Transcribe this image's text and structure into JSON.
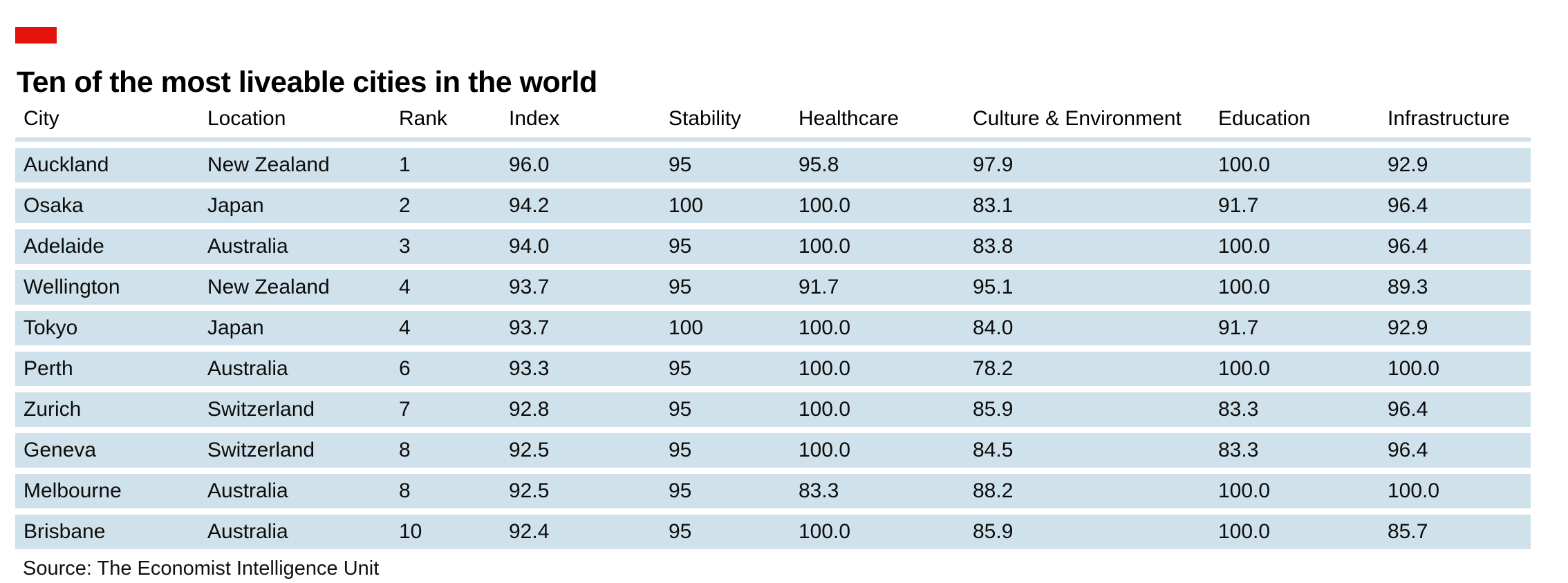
{
  "brand": {
    "accent_color": "#e3120b",
    "row_background": "#cfe1ea"
  },
  "chart_data": {
    "type": "table",
    "title": "Ten of the most liveable cities in the world",
    "columns": [
      "City",
      "Location",
      "Rank",
      "Index",
      "Stability",
      "Healthcare",
      "Culture & Environment",
      "Education",
      "Infrastructure"
    ],
    "rows": [
      [
        "Auckland",
        "New Zealand",
        "1",
        "96.0",
        "95",
        "95.8",
        "97.9",
        "100.0",
        "92.9"
      ],
      [
        "Osaka",
        "Japan",
        "2",
        "94.2",
        "100",
        "100.0",
        "83.1",
        "91.7",
        "96.4"
      ],
      [
        "Adelaide",
        "Australia",
        "3",
        "94.0",
        "95",
        "100.0",
        "83.8",
        "100.0",
        "96.4"
      ],
      [
        "Wellington",
        "New Zealand",
        "4",
        "93.7",
        "95",
        "91.7",
        "95.1",
        "100.0",
        "89.3"
      ],
      [
        "Tokyo",
        "Japan",
        "4",
        "93.7",
        "100",
        "100.0",
        "84.0",
        "91.7",
        "92.9"
      ],
      [
        "Perth",
        "Australia",
        "6",
        "93.3",
        "95",
        "100.0",
        "78.2",
        "100.0",
        "100.0"
      ],
      [
        "Zurich",
        "Switzerland",
        "7",
        "92.8",
        "95",
        "100.0",
        "85.9",
        "83.3",
        "96.4"
      ],
      [
        "Geneva",
        "Switzerland",
        "8",
        "92.5",
        "95",
        "100.0",
        "84.5",
        "83.3",
        "96.4"
      ],
      [
        "Melbourne",
        "Australia",
        "8",
        "92.5",
        "95",
        "83.3",
        "88.2",
        "100.0",
        "100.0"
      ],
      [
        "Brisbane",
        "Australia",
        "10",
        "92.4",
        "95",
        "100.0",
        "85.9",
        "100.0",
        "85.7"
      ]
    ],
    "source": "Source: The Economist Intelligence Unit",
    "layout": {
      "grid": "off",
      "legend": "none"
    }
  }
}
